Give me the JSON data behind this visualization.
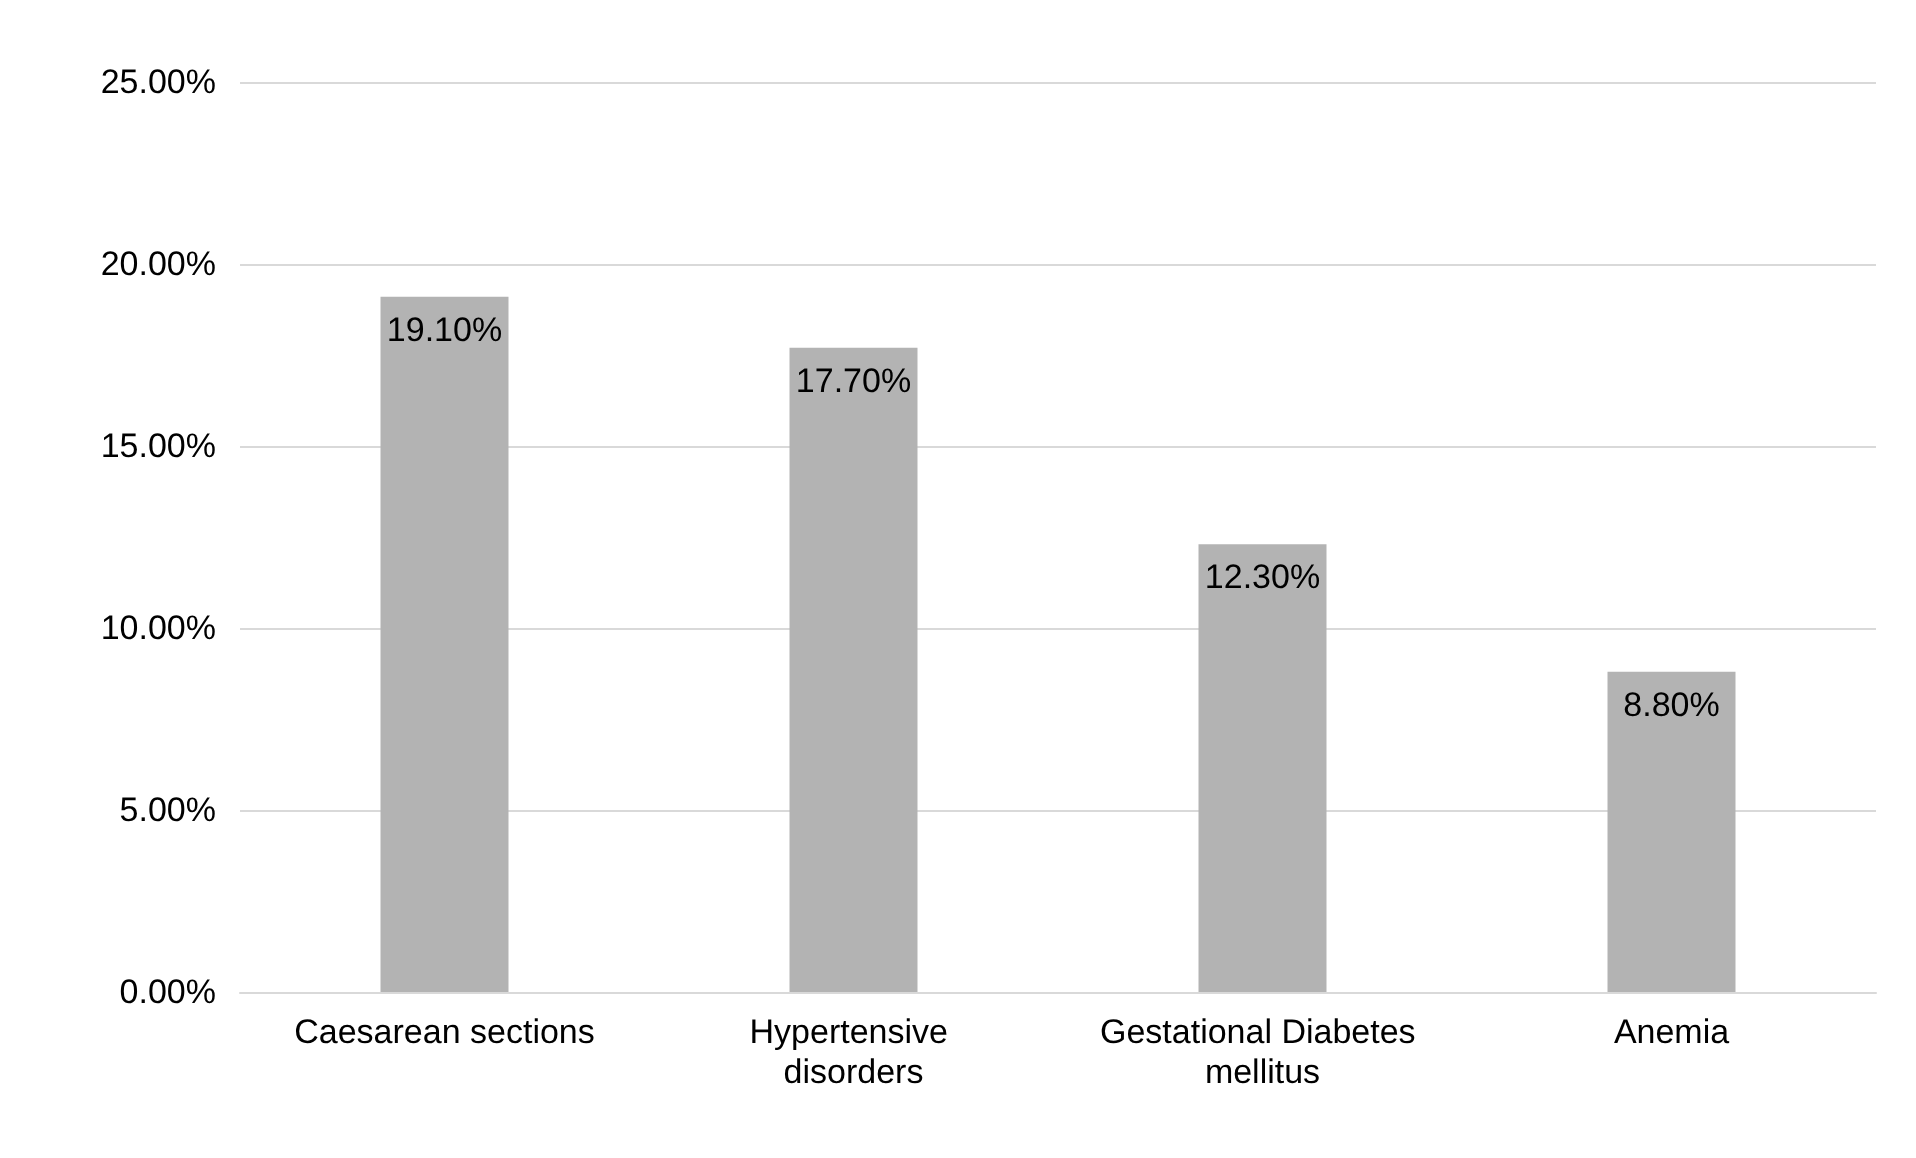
{
  "chart_data": {
    "type": "bar",
    "categories": [
      "Caesarean sections",
      "Hypertensive disorders",
      "Gestational Diabetes mellitus",
      "Anemia"
    ],
    "values": [
      19.1,
      17.7,
      12.3,
      8.8
    ],
    "color": "#b3b3b3",
    "value_labels": [
      "19.10%",
      "17.70%",
      "12.30%",
      "8.80%"
    ],
    "ylim": [
      0,
      25
    ],
    "yticks": [
      {
        "value": 0,
        "label": "0.00%"
      },
      {
        "value": 5,
        "label": "5.00%"
      },
      {
        "value": 10,
        "label": "10.00%"
      },
      {
        "value": 15,
        "label": "15.00%"
      },
      {
        "value": 20,
        "label": "20.00%"
      },
      {
        "value": 25,
        "label": "25.00%"
      }
    ],
    "grid": "y"
  }
}
